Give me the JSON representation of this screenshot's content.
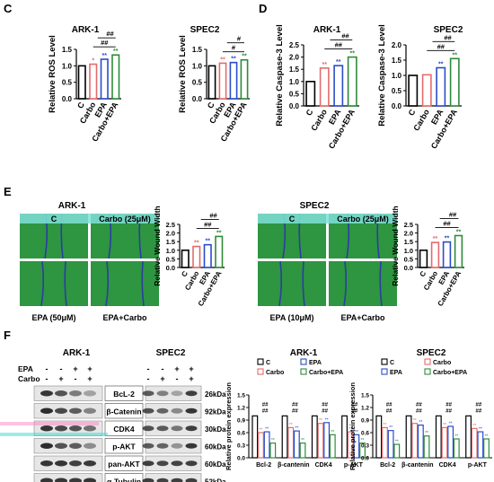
{
  "panels": {
    "C": {
      "letter": "C",
      "charts": [
        {
          "title": "ARK-1",
          "ylabel": "Relative ROS Level",
          "ylim": [
            0,
            1.5
          ],
          "ticks": [
            "0.0",
            "0.5",
            "1.0",
            "1.5"
          ],
          "categories": [
            "C",
            "Carbo",
            "EPA",
            "Carbo+EPA"
          ],
          "values": [
            1.0,
            1.05,
            1.2,
            1.33
          ],
          "colors": [
            "#000000",
            "#e46b6b",
            "#2a4cc9",
            "#2e8b3a"
          ],
          "stars": [
            "",
            "*",
            "**",
            "**"
          ],
          "sig": [
            "##",
            "##"
          ]
        },
        {
          "title": "SPEC2",
          "ylabel": "Relative ROS Level",
          "ylim": [
            0,
            1.5
          ],
          "ticks": [
            "0.0",
            "0.5",
            "1.0",
            "1.5"
          ],
          "categories": [
            "C",
            "Carbo",
            "EPA",
            "Carbo+EPA"
          ],
          "values": [
            1.0,
            1.08,
            1.1,
            1.18
          ],
          "colors": [
            "#000000",
            "#e46b6b",
            "#2a4cc9",
            "#2e8b3a"
          ],
          "stars": [
            "",
            "**",
            "**",
            "**"
          ],
          "sig": [
            "#",
            "#"
          ]
        }
      ]
    },
    "D": {
      "letter": "D",
      "charts": [
        {
          "title": "ARK-1",
          "ylabel": "Relative Caspase-3 Level",
          "ylim": [
            0,
            2.5
          ],
          "ticks": [
            "0.0",
            "0.5",
            "1.0",
            "1.5",
            "2.0",
            "2.5"
          ],
          "categories": [
            "C",
            "Carbo",
            "EPA",
            "Carbo+EPA"
          ],
          "values": [
            1.0,
            1.55,
            1.65,
            2.0
          ],
          "colors": [
            "#000000",
            "#e46b6b",
            "#2a4cc9",
            "#2e8b3a"
          ],
          "stars": [
            "",
            "**",
            "**",
            "**"
          ],
          "sig": [
            "##",
            "##"
          ]
        },
        {
          "title": "SPEC2",
          "ylabel": "Relative Caspase-3 Level",
          "ylim": [
            0,
            2.0
          ],
          "ticks": [
            "0.0",
            "0.5",
            "1.0",
            "1.5",
            "2.0"
          ],
          "categories": [
            "C",
            "Carbo",
            "EPA",
            "Carbo+EPA"
          ],
          "values": [
            1.0,
            1.02,
            1.25,
            1.55
          ],
          "colors": [
            "#000000",
            "#e46b6b",
            "#2a4cc9",
            "#2e8b3a"
          ],
          "stars": [
            "",
            "",
            "**",
            "**"
          ],
          "sig": [
            "##",
            "##"
          ]
        }
      ]
    },
    "E": {
      "letter": "E",
      "groups": [
        {
          "title": "ARK-1",
          "img_labels": [
            "C",
            "Carbo (25μM)",
            "EPA (50μM)",
            "EPA+Carbo"
          ],
          "chart": {
            "ylabel": "Relative Wound Width",
            "ylim": [
              0,
              2.5
            ],
            "ticks": [
              "0.0",
              "0.5",
              "1.0",
              "1.5",
              "2.0",
              "2.5"
            ],
            "categories": [
              "C",
              "Carbo",
              "EPA",
              "Carbo+EPA"
            ],
            "values": [
              1.0,
              1.22,
              1.32,
              1.8
            ],
            "colors": [
              "#000000",
              "#e46b6b",
              "#2a4cc9",
              "#2e8b3a"
            ],
            "stars": [
              "",
              "**",
              "**",
              "**"
            ],
            "sig": [
              "##",
              "##"
            ]
          }
        },
        {
          "title": "SPEC2",
          "img_labels": [
            "C",
            "Carbo (25μM)",
            "EPA (10μM)",
            "EPA+Carbo"
          ],
          "chart": {
            "ylabel": "Relative Wound Width",
            "ylim": [
              0,
              2.5
            ],
            "ticks": [
              "0.0",
              "0.5",
              "1.0",
              "1.5",
              "2.0",
              "2.5"
            ],
            "categories": [
              "C",
              "Carbo",
              "EPA",
              "Carbo+EPA"
            ],
            "values": [
              1.0,
              1.45,
              1.48,
              1.85
            ],
            "colors": [
              "#000000",
              "#e46b6b",
              "#2a4cc9",
              "#2e8b3a"
            ],
            "stars": [
              "",
              "**",
              "**",
              "**"
            ],
            "sig": [
              "##",
              "##"
            ]
          }
        }
      ]
    },
    "F": {
      "letter": "F",
      "blot_titles": [
        "ARK-1",
        "SPEC2"
      ],
      "treatment_labels": [
        "EPA",
        "Carbo"
      ],
      "epa_signs": [
        "-",
        "-",
        "+",
        "+"
      ],
      "carbo_signs": [
        "-",
        "+",
        "-",
        "+"
      ],
      "proteins": [
        "BcL-2",
        "β-Catenin",
        "CDK4",
        "p-AKT",
        "pan-AKT",
        "α-Tubulin"
      ],
      "kda": [
        "26kDa",
        "92kDa",
        "30kDa",
        "60kDa",
        "60kDa",
        "52kDa"
      ],
      "charts": [
        {
          "title": "ARK-1",
          "ylabel": "Relative protein expression",
          "ylim": [
            0,
            1.5
          ],
          "ticks": [
            "0.0",
            "0.3",
            "0.6",
            "0.9",
            "1.2",
            "1.5"
          ],
          "legend": [
            "C",
            "EPA",
            "Carbo",
            "Carbo+EPA"
          ],
          "categories": [
            "Bcl-2",
            "β-cantenin",
            "CDK4",
            "p-AKT"
          ],
          "series": [
            {
              "name": "C",
              "values": [
                1.0,
                1.0,
                1.0,
                1.0
              ]
            },
            {
              "name": "Carbo",
              "values": [
                0.6,
                0.72,
                0.82,
                0.62
              ]
            },
            {
              "name": "EPA",
              "values": [
                0.62,
                0.64,
                0.84,
                0.55
              ]
            },
            {
              "name": "Carbo+EPA",
              "values": [
                0.35,
                0.35,
                0.55,
                0.35
              ]
            }
          ]
        },
        {
          "title": "SPEC2",
          "ylabel": "Relative protein expression",
          "ylim": [
            0,
            1.5
          ],
          "ticks": [
            "0.0",
            "0.3",
            "0.6",
            "0.9",
            "1.2",
            "1.5"
          ],
          "legend": [
            "C",
            "Carbo",
            "EPA",
            "Carbo+EPA"
          ],
          "categories": [
            "Bcl-2",
            "β-cantenin",
            "CDK4",
            "p-AKT"
          ],
          "series": [
            {
              "name": "C",
              "values": [
                1.0,
                1.0,
                1.0,
                1.0
              ]
            },
            {
              "name": "Carbo",
              "values": [
                0.72,
                0.82,
                0.72,
                0.7
              ]
            },
            {
              "name": "EPA",
              "values": [
                0.65,
                0.78,
                0.75,
                0.62
              ]
            },
            {
              "name": "Carbo+EPA",
              "values": [
                0.32,
                0.52,
                0.45,
                0.45
              ]
            }
          ]
        }
      ]
    }
  },
  "chart_data": [
    {
      "type": "bar",
      "title": "ARK-1",
      "ylabel": "Relative ROS Level",
      "categories": [
        "C",
        "Carbo",
        "EPA",
        "Carbo+EPA"
      ],
      "values": [
        1.0,
        1.05,
        1.2,
        1.33
      ],
      "ylim": [
        0,
        1.5
      ]
    },
    {
      "type": "bar",
      "title": "SPEC2",
      "ylabel": "Relative ROS Level",
      "categories": [
        "C",
        "Carbo",
        "EPA",
        "Carbo+EPA"
      ],
      "values": [
        1.0,
        1.08,
        1.1,
        1.18
      ],
      "ylim": [
        0,
        1.5
      ]
    },
    {
      "type": "bar",
      "title": "ARK-1",
      "ylabel": "Relative Caspase-3 Level",
      "categories": [
        "C",
        "Carbo",
        "EPA",
        "Carbo+EPA"
      ],
      "values": [
        1.0,
        1.55,
        1.65,
        2.0
      ],
      "ylim": [
        0,
        2.5
      ]
    },
    {
      "type": "bar",
      "title": "SPEC2",
      "ylabel": "Relative Caspase-3 Level",
      "categories": [
        "C",
        "Carbo",
        "EPA",
        "Carbo+EPA"
      ],
      "values": [
        1.0,
        1.02,
        1.25,
        1.55
      ],
      "ylim": [
        0,
        2.0
      ]
    },
    {
      "type": "bar",
      "title": "ARK-1",
      "ylabel": "Relative Wound Width",
      "categories": [
        "C",
        "Carbo",
        "EPA",
        "Carbo+EPA"
      ],
      "values": [
        1.0,
        1.22,
        1.32,
        1.8
      ],
      "ylim": [
        0,
        2.5
      ]
    },
    {
      "type": "bar",
      "title": "SPEC2",
      "ylabel": "Relative Wound Width",
      "categories": [
        "C",
        "Carbo",
        "EPA",
        "Carbo+EPA"
      ],
      "values": [
        1.0,
        1.45,
        1.48,
        1.85
      ],
      "ylim": [
        0,
        2.5
      ]
    },
    {
      "type": "bar",
      "title": "ARK-1",
      "ylabel": "Relative protein expression",
      "categories": [
        "Bcl-2",
        "β-cantenin",
        "CDK4",
        "p-AKT"
      ],
      "series": [
        {
          "name": "C",
          "values": [
            1.0,
            1.0,
            1.0,
            1.0
          ]
        },
        {
          "name": "Carbo",
          "values": [
            0.6,
            0.72,
            0.82,
            0.62
          ]
        },
        {
          "name": "EPA",
          "values": [
            0.62,
            0.64,
            0.84,
            0.55
          ]
        },
        {
          "name": "Carbo+EPA",
          "values": [
            0.35,
            0.35,
            0.55,
            0.35
          ]
        }
      ],
      "ylim": [
        0,
        1.5
      ]
    },
    {
      "type": "bar",
      "title": "SPEC2",
      "ylabel": "Relative protein expression",
      "categories": [
        "Bcl-2",
        "β-cantenin",
        "CDK4",
        "p-AKT"
      ],
      "series": [
        {
          "name": "C",
          "values": [
            1.0,
            1.0,
            1.0,
            1.0
          ]
        },
        {
          "name": "Carbo",
          "values": [
            0.72,
            0.82,
            0.72,
            0.7
          ]
        },
        {
          "name": "EPA",
          "values": [
            0.65,
            0.78,
            0.75,
            0.62
          ]
        },
        {
          "name": "Carbo+EPA",
          "values": [
            0.32,
            0.52,
            0.45,
            0.45
          ]
        }
      ],
      "ylim": [
        0,
        1.5
      ]
    }
  ]
}
